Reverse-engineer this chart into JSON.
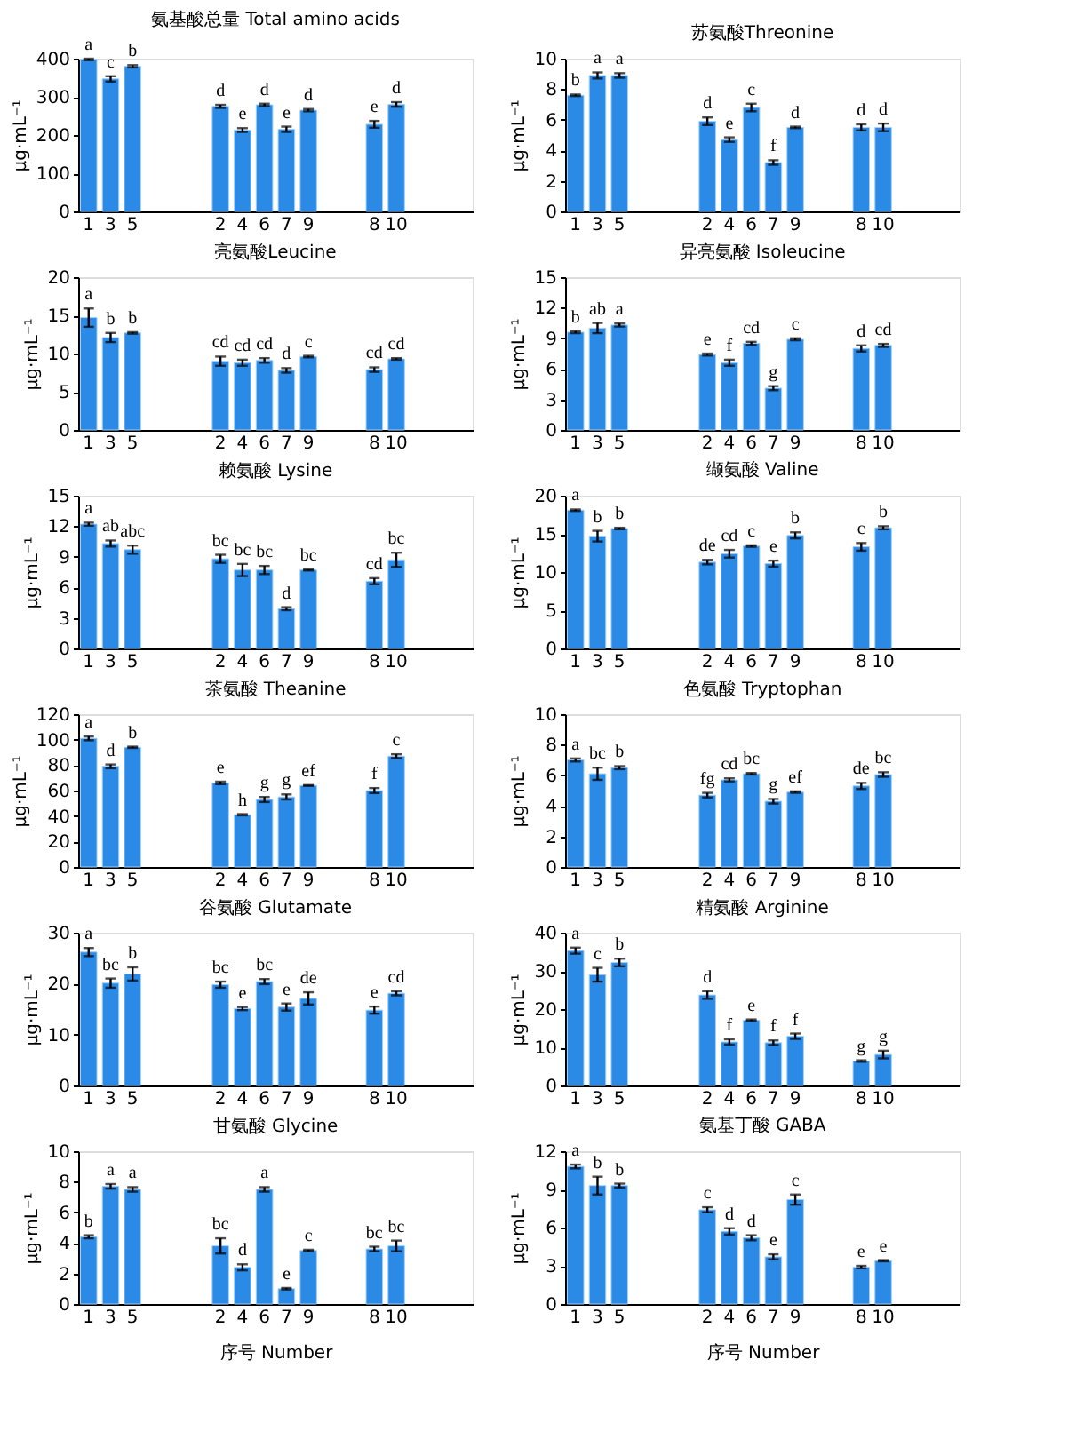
{
  "chart_data": [
    {
      "type": "bar",
      "title": "氨基酸总量 Total amino acids",
      "ylabel": "μg·mL⁻¹",
      "color": "#2a8ae6",
      "categories": [
        "1",
        "3",
        "5",
        null,
        null,
        null,
        "2",
        "4",
        "6",
        "7",
        "9",
        null,
        null,
        "8",
        "10",
        null,
        null,
        null
      ],
      "ylim": [
        0,
        400
      ],
      "yticks": [
        0,
        100,
        200,
        300,
        400
      ],
      "grid": false,
      "values": [
        398,
        347,
        380,
        null,
        null,
        null,
        275,
        213,
        279,
        215,
        265,
        null,
        null,
        228,
        280,
        null,
        null,
        null
      ],
      "errors": [
        2,
        7,
        3,
        null,
        null,
        null,
        4,
        5,
        3,
        7,
        3,
        null,
        null,
        9,
        6,
        null,
        null,
        null
      ],
      "value_labels": [
        "a",
        "c",
        "b",
        null,
        null,
        null,
        "d",
        "e",
        "d",
        "e",
        "d",
        null,
        null,
        "e",
        "d",
        null,
        null,
        null
      ]
    },
    {
      "type": "bar",
      "title": "苏氨酸Threonine",
      "ylabel": "μg·mL⁻¹",
      "color": "#2a8ae6",
      "categories": [
        "1",
        "3",
        "5",
        null,
        null,
        null,
        "2",
        "4",
        "6",
        "7",
        "9",
        null,
        null,
        "8",
        "10",
        null,
        null,
        null
      ],
      "ylim": [
        0,
        10
      ],
      "yticks": [
        0,
        2,
        4,
        6,
        8,
        10
      ],
      "grid": false,
      "values": [
        7.6,
        8.9,
        8.9,
        null,
        null,
        null,
        5.9,
        4.7,
        6.8,
        3.2,
        5.5,
        null,
        null,
        5.5,
        5.5,
        null,
        null,
        null
      ],
      "errors": [
        0.05,
        0.2,
        0.15,
        null,
        null,
        null,
        0.25,
        0.15,
        0.25,
        0.15,
        0.05,
        null,
        null,
        0.2,
        0.25,
        null,
        null,
        null
      ],
      "value_labels": [
        "b",
        "a",
        "a",
        null,
        null,
        null,
        "d",
        "e",
        "c",
        "f",
        "d",
        null,
        null,
        "d",
        "d",
        null,
        null,
        null
      ]
    },
    {
      "type": "bar",
      "title": "亮氨酸Leucine",
      "ylabel": "μg·mL⁻¹",
      "color": "#2a8ae6",
      "categories": [
        "1",
        "3",
        "5",
        null,
        null,
        null,
        "2",
        "4",
        "6",
        "7",
        "9",
        null,
        null,
        "8",
        "10",
        null,
        null,
        null
      ],
      "ylim": [
        0,
        20
      ],
      "yticks": [
        0,
        5,
        10,
        15,
        20
      ],
      "grid": false,
      "values": [
        14.7,
        12.1,
        12.7,
        null,
        null,
        null,
        9.0,
        8.8,
        9.1,
        7.8,
        9.6,
        null,
        null,
        7.9,
        9.3,
        null,
        null,
        null
      ],
      "errors": [
        1.2,
        0.6,
        0.1,
        null,
        null,
        null,
        0.6,
        0.4,
        0.3,
        0.3,
        0.1,
        null,
        null,
        0.3,
        0.1,
        null,
        null,
        null
      ],
      "value_labels": [
        "a",
        "b",
        "b",
        null,
        null,
        null,
        "cd",
        "cd",
        "cd",
        "d",
        "c",
        null,
        null,
        "cd",
        "cd",
        null,
        null,
        null
      ]
    },
    {
      "type": "bar",
      "title": "异亮氨酸 Isoleucine",
      "ylabel": "μg·mL⁻¹",
      "color": "#2a8ae6",
      "categories": [
        "1",
        "3",
        "5",
        null,
        null,
        null,
        "2",
        "4",
        "6",
        "7",
        "9",
        null,
        null,
        "8",
        "10",
        null,
        null,
        null
      ],
      "ylim": [
        0,
        15
      ],
      "yticks": [
        0,
        3,
        6,
        9,
        12,
        15
      ],
      "grid": false,
      "values": [
        9.6,
        10.0,
        10.3,
        null,
        null,
        null,
        7.4,
        6.6,
        8.5,
        4.1,
        8.9,
        null,
        null,
        8.0,
        8.3,
        null,
        null,
        null
      ],
      "errors": [
        0.1,
        0.5,
        0.15,
        null,
        null,
        null,
        0.1,
        0.3,
        0.15,
        0.2,
        0.1,
        null,
        null,
        0.3,
        0.15,
        null,
        null,
        null
      ],
      "value_labels": [
        "b",
        "ab",
        "a",
        null,
        null,
        null,
        "e",
        "f",
        "cd",
        "g",
        "c",
        null,
        null,
        "d",
        "cd",
        null,
        null,
        null
      ]
    },
    {
      "type": "bar",
      "title": "赖氨酸 Lysine",
      "ylabel": "μg·mL⁻¹",
      "color": "#2a8ae6",
      "categories": [
        "1",
        "3",
        "5",
        null,
        null,
        null,
        "2",
        "4",
        "6",
        "7",
        "9",
        null,
        null,
        "8",
        "10",
        null,
        null,
        null
      ],
      "ylim": [
        0,
        15
      ],
      "yticks": [
        0,
        3,
        6,
        9,
        12,
        15
      ],
      "grid": false,
      "values": [
        12.2,
        10.3,
        9.7,
        null,
        null,
        null,
        8.8,
        7.7,
        7.7,
        3.9,
        7.7,
        null,
        null,
        6.6,
        8.7,
        null,
        null,
        null
      ],
      "errors": [
        0.15,
        0.3,
        0.4,
        null,
        null,
        null,
        0.4,
        0.6,
        0.4,
        0.15,
        0.05,
        null,
        null,
        0.3,
        0.7,
        null,
        null,
        null
      ],
      "value_labels": [
        "a",
        "ab",
        "abc",
        null,
        null,
        null,
        "bc",
        "bc",
        "bc",
        "d",
        "bc",
        null,
        null,
        "cd",
        "bc",
        null,
        null,
        null
      ]
    },
    {
      "type": "bar",
      "title": "缬氨酸 Valine",
      "ylabel": "μg·mL⁻¹",
      "color": "#2a8ae6",
      "categories": [
        "1",
        "3",
        "5",
        null,
        null,
        null,
        "2",
        "4",
        "6",
        "7",
        "9",
        null,
        null,
        "8",
        "10",
        null,
        null,
        null
      ],
      "ylim": [
        0,
        20
      ],
      "yticks": [
        0,
        5,
        10,
        15,
        20
      ],
      "grid": false,
      "values": [
        18.1,
        14.7,
        15.7,
        null,
        null,
        null,
        11.3,
        12.4,
        13.4,
        11.1,
        14.8,
        null,
        null,
        13.3,
        15.8,
        null,
        null,
        null
      ],
      "errors": [
        0.1,
        0.7,
        0.1,
        null,
        null,
        null,
        0.3,
        0.5,
        0.1,
        0.4,
        0.4,
        null,
        null,
        0.5,
        0.2,
        null,
        null,
        null
      ],
      "value_labels": [
        "a",
        "b",
        "b",
        null,
        null,
        null,
        "de",
        "cd",
        "c",
        "e",
        "b",
        null,
        null,
        "c",
        "b",
        null,
        null,
        null
      ]
    },
    {
      "type": "bar",
      "title": "茶氨酸 Theanine",
      "ylabel": "μg·mL⁻¹",
      "color": "#2a8ae6",
      "categories": [
        "1",
        "3",
        "5",
        null,
        null,
        null,
        "2",
        "4",
        "6",
        "7",
        "9",
        null,
        null,
        "8",
        "10",
        null,
        null,
        null
      ],
      "ylim": [
        0,
        120
      ],
      "yticks": [
        0,
        20,
        40,
        60,
        80,
        100,
        120
      ],
      "grid": false,
      "values": [
        101,
        79,
        94,
        null,
        null,
        null,
        66,
        41,
        53,
        55,
        64,
        null,
        null,
        60,
        87,
        null,
        null,
        null
      ],
      "errors": [
        1.5,
        1.5,
        0.5,
        null,
        null,
        null,
        1,
        0.5,
        2,
        2,
        0.3,
        null,
        null,
        2,
        1.5,
        null,
        null,
        null
      ],
      "value_labels": [
        "a",
        "d",
        "b",
        null,
        null,
        null,
        "e",
        "h",
        "g",
        "g",
        "ef",
        null,
        null,
        "f",
        "c",
        null,
        null,
        null
      ]
    },
    {
      "type": "bar",
      "title": "色氨酸 Tryptophan",
      "ylabel": "μg·mL⁻¹",
      "color": "#2a8ae6",
      "categories": [
        "1",
        "3",
        "5",
        null,
        null,
        null,
        "2",
        "4",
        "6",
        "7",
        "9",
        null,
        null,
        "8",
        "10",
        null,
        null,
        null
      ],
      "ylim": [
        0,
        10
      ],
      "yticks": [
        0,
        2,
        4,
        6,
        8,
        10
      ],
      "grid": false,
      "values": [
        7.0,
        6.1,
        6.5,
        null,
        null,
        null,
        4.7,
        5.7,
        6.1,
        4.3,
        4.9,
        null,
        null,
        5.3,
        6.05,
        null,
        null,
        null
      ],
      "errors": [
        0.1,
        0.4,
        0.1,
        null,
        null,
        null,
        0.15,
        0.1,
        0.05,
        0.15,
        0.05,
        null,
        null,
        0.2,
        0.15,
        null,
        null,
        null
      ],
      "value_labels": [
        "a",
        "bc",
        "b",
        null,
        null,
        null,
        "fg",
        "cd",
        "bc",
        "g",
        "ef",
        null,
        null,
        "de",
        "bc",
        null,
        null,
        null
      ]
    },
    {
      "type": "bar",
      "title": "谷氨酸 Glutamate",
      "ylabel": "μg·mL⁻¹",
      "color": "#2a8ae6",
      "categories": [
        "1",
        "3",
        "5",
        null,
        null,
        null,
        "2",
        "4",
        "6",
        "7",
        "9",
        null,
        null,
        "8",
        "10",
        null,
        null,
        null
      ],
      "ylim": [
        0,
        30
      ],
      "yticks": [
        0,
        10,
        20,
        30
      ],
      "grid": false,
      "values": [
        26.2,
        20.1,
        21.9,
        null,
        null,
        null,
        19.8,
        15.1,
        20.4,
        15.4,
        17.1,
        null,
        null,
        14.8,
        18.1,
        null,
        null,
        null
      ],
      "errors": [
        0.8,
        0.9,
        1.3,
        null,
        null,
        null,
        0.6,
        0.3,
        0.5,
        0.7,
        1.2,
        null,
        null,
        0.7,
        0.4,
        null,
        null,
        null
      ],
      "value_labels": [
        "a",
        "bc",
        "b",
        null,
        null,
        null,
        "bc",
        "e",
        "bc",
        "e",
        "de",
        null,
        null,
        "e",
        "cd",
        null,
        null,
        null
      ]
    },
    {
      "type": "bar",
      "title": "精氨酸 Arginine",
      "ylabel": "μg·mL⁻¹",
      "color": "#2a8ae6",
      "categories": [
        "1",
        "3",
        "5",
        null,
        null,
        null,
        "2",
        "4",
        "6",
        "7",
        "9",
        null,
        null,
        "8",
        "10",
        null,
        null,
        null
      ],
      "ylim": [
        0,
        40
      ],
      "yticks": [
        0,
        10,
        20,
        30,
        40
      ],
      "grid": false,
      "values": [
        35.3,
        29,
        32.2,
        null,
        null,
        null,
        23.7,
        11.4,
        17.1,
        11.2,
        12.9,
        null,
        null,
        6.4,
        8.1,
        null,
        null,
        null
      ],
      "errors": [
        0.8,
        1.8,
        1,
        null,
        null,
        null,
        1,
        0.7,
        0.2,
        0.6,
        0.7,
        null,
        null,
        0.2,
        1,
        null,
        null,
        null
      ],
      "value_labels": [
        "a",
        "c",
        "b",
        null,
        null,
        null,
        "d",
        "f",
        "e",
        "f",
        "f",
        null,
        null,
        "g",
        "g",
        null,
        null,
        null
      ]
    },
    {
      "type": "bar",
      "title": "甘氨酸 Glycine",
      "ylabel": "μg·mL⁻¹",
      "xlabel": "序号 Number",
      "color": "#2a8ae6",
      "categories": [
        "1",
        "3",
        "5",
        null,
        null,
        null,
        "2",
        "4",
        "6",
        "7",
        "9",
        null,
        null,
        "8",
        "10",
        null,
        null,
        null
      ],
      "ylim": [
        0,
        10
      ],
      "yticks": [
        0,
        2,
        4,
        6,
        8,
        10
      ],
      "grid": false,
      "values": [
        4.4,
        7.7,
        7.5,
        null,
        null,
        null,
        3.8,
        2.4,
        7.5,
        1.0,
        3.5,
        null,
        null,
        3.6,
        3.8,
        null,
        null,
        null
      ],
      "errors": [
        0.1,
        0.15,
        0.15,
        null,
        null,
        null,
        0.5,
        0.2,
        0.15,
        0.05,
        0.05,
        null,
        null,
        0.15,
        0.35,
        null,
        null,
        null
      ],
      "value_labels": [
        "b",
        "a",
        "a",
        null,
        null,
        null,
        "bc",
        "d",
        "a",
        "e",
        "c",
        null,
        null,
        "bc",
        "bc",
        null,
        null,
        null
      ]
    },
    {
      "type": "bar",
      "title": "氨基丁酸 GABA",
      "ylabel": "μg·mL⁻¹",
      "xlabel": "序号 Number",
      "color": "#2a8ae6",
      "categories": [
        "1",
        "3",
        "5",
        null,
        null,
        null,
        "2",
        "4",
        "6",
        "7",
        "9",
        null,
        null,
        "8",
        "10",
        null,
        null,
        null
      ],
      "ylim": [
        0,
        12
      ],
      "yticks": [
        0,
        3,
        6,
        9,
        12
      ],
      "grid": false,
      "values": [
        10.8,
        9.3,
        9.3,
        null,
        null,
        null,
        7.4,
        5.7,
        5.2,
        3.7,
        8.2,
        null,
        null,
        2.9,
        3.4,
        null,
        null,
        null
      ],
      "errors": [
        0.15,
        0.7,
        0.15,
        null,
        null,
        null,
        0.2,
        0.25,
        0.2,
        0.2,
        0.4,
        null,
        null,
        0.1,
        0.05,
        null,
        null,
        null
      ],
      "value_labels": [
        "a",
        "b",
        "b",
        null,
        null,
        null,
        "c",
        "d",
        "d",
        "e",
        "c",
        null,
        null,
        "e",
        "e",
        null,
        null,
        null
      ]
    }
  ]
}
